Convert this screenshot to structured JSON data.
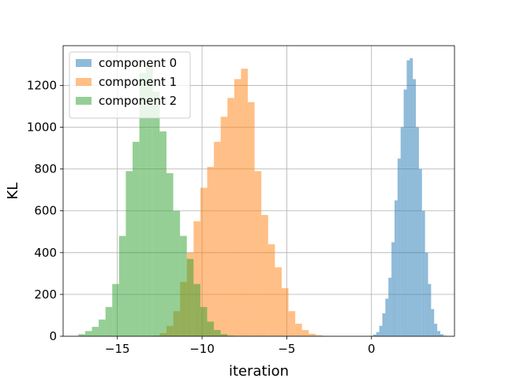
{
  "chart_data": {
    "type": "bar",
    "subtype": "histogram",
    "xlabel": "iteration",
    "ylabel": "KL",
    "xlim": [
      -18.2,
      4.9
    ],
    "ylim": [
      0,
      1390
    ],
    "xticks": [
      -15,
      -10,
      -5,
      0
    ],
    "xtick_labels": [
      "−15",
      "−10",
      "−5",
      "0"
    ],
    "yticks": [
      0,
      200,
      400,
      600,
      800,
      1000,
      1200
    ],
    "grid": true,
    "legend_position": "top-left",
    "series": [
      {
        "name": "component 0",
        "color": "#1f77b4",
        "alpha": 0.5,
        "bin_start": 0.1,
        "bin_width": 0.18,
        "counts": [
          8,
          20,
          50,
          110,
          180,
          280,
          450,
          650,
          850,
          1000,
          1180,
          1320,
          1330,
          1230,
          1000,
          800,
          600,
          400,
          250,
          130,
          60,
          25,
          10,
          3
        ]
      },
      {
        "name": "component 1",
        "color": "#ff7f0e",
        "alpha": 0.5,
        "bin_start": -12.9,
        "bin_width": 0.4,
        "counts": [
          3,
          15,
          50,
          120,
          260,
          400,
          550,
          710,
          810,
          930,
          1050,
          1140,
          1230,
          1280,
          1120,
          790,
          580,
          440,
          330,
          230,
          120,
          60,
          30,
          12,
          5,
          2
        ]
      },
      {
        "name": "component 2",
        "color": "#2ca02c",
        "alpha": 0.5,
        "bin_start": -17.3,
        "bin_width": 0.4,
        "counts": [
          10,
          25,
          45,
          80,
          140,
          250,
          480,
          790,
          930,
          1260,
          1300,
          1170,
          980,
          780,
          600,
          480,
          370,
          250,
          140,
          70,
          30,
          10,
          3
        ]
      }
    ]
  }
}
